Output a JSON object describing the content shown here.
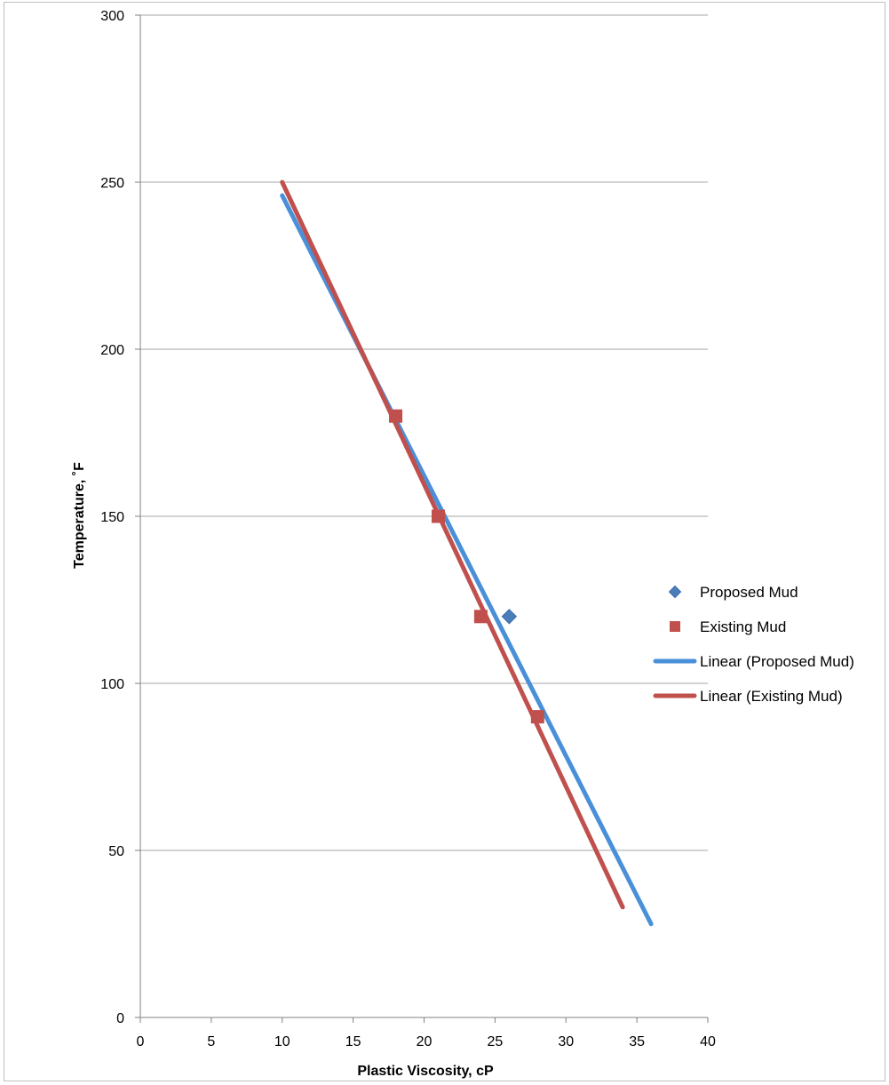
{
  "chart_data": {
    "type": "scatter",
    "title": "",
    "xlabel": "Plastic Viscosity, cP",
    "ylabel": "Temperature, ˚F",
    "xlim": [
      0,
      40
    ],
    "ylim": [
      0,
      300
    ],
    "xticks": [
      0,
      5,
      10,
      15,
      20,
      25,
      30,
      35,
      40
    ],
    "yticks": [
      0,
      50,
      100,
      150,
      200,
      250,
      300
    ],
    "grid": "horizontal",
    "legend_position": "right",
    "series": [
      {
        "name": "Proposed Mud",
        "marker": "diamond",
        "color": "#4a7ebb",
        "points": [
          {
            "x": 26,
            "y": 120
          }
        ]
      },
      {
        "name": "Existing Mud",
        "marker": "square",
        "color": "#c0504d",
        "points": [
          {
            "x": 18,
            "y": 180
          },
          {
            "x": 21,
            "y": 150
          },
          {
            "x": 24,
            "y": 120
          },
          {
            "x": 28,
            "y": 90
          }
        ]
      }
    ],
    "trendlines": [
      {
        "name": "Linear (Proposed Mud)",
        "color": "#4a90d9",
        "x": [
          10,
          36
        ],
        "y": [
          246,
          28
        ]
      },
      {
        "name": "Linear (Existing Mud)",
        "color": "#c0504d",
        "x": [
          10,
          34
        ],
        "y": [
          250,
          33
        ]
      }
    ]
  }
}
